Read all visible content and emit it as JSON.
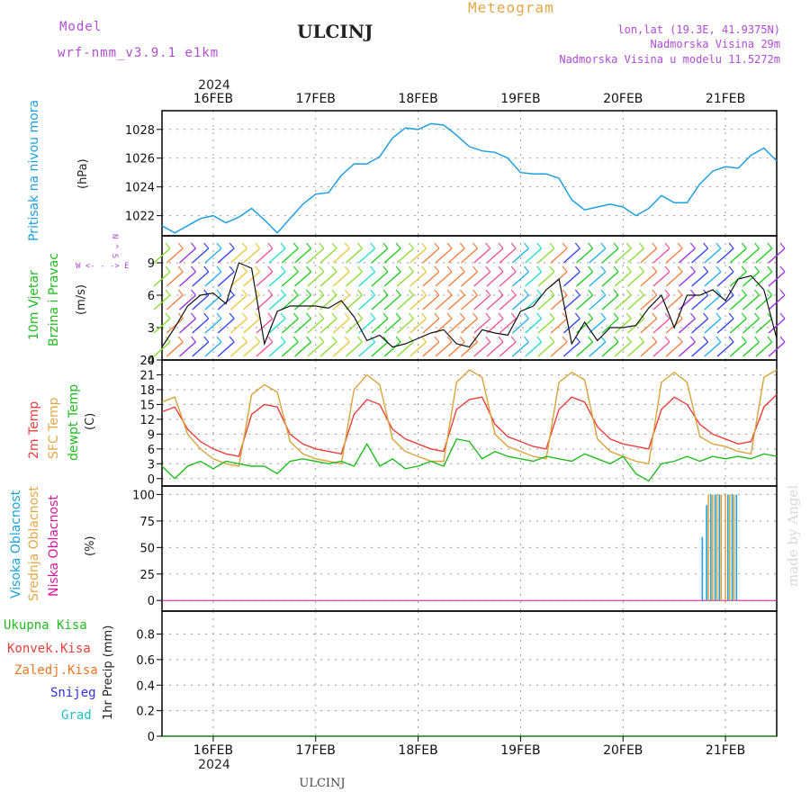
{
  "header": {
    "model_label": "Model",
    "model_name": "wrf-nmm_v3.9.1 e1km",
    "station": "ULCINJ",
    "app_title": "Meteogram",
    "lonlat": "lon,lat (19.3E, 41.9375N)",
    "elevation": "Nadmorska Visina 29m",
    "model_elevation": "Nadmorska Visina u modelu 11.5272m",
    "footer_station": "ULCINJ",
    "credit": "made by Angel"
  },
  "colors": {
    "pressure": "#1e9fe0",
    "temp2m": "#e8403c",
    "sfc_temp": "#d9a33a",
    "dewpt": "#22bb22",
    "high_cloud": "#1aa3e0",
    "mid_cloud": "#e3a53a",
    "low_cloud": "#d4189a",
    "magenta_label": "#b04cd6",
    "orange_label": "#e2a847",
    "green_label": "#22bb22",
    "red_label": "#e8403c",
    "blue_label": "#3030e0",
    "cyan_label": "#20c0c0"
  },
  "time_axis": {
    "year_label": "2024",
    "dates": [
      "16FEB",
      "17FEB",
      "18FEB",
      "19FEB",
      "20FEB",
      "21FEB"
    ],
    "start": "2024-02-15T12:00",
    "end": "2024-02-21T12:00"
  },
  "panels": {
    "pressure": {
      "title": "Pritisak na nivou mora",
      "unit": "(hPa)"
    },
    "wind": {
      "title": "10m Vjetar",
      "subtitle": "Brzina i Pravac",
      "unit": "(m/s)",
      "compass": "W <- - -> E",
      "compass_ns": "N ^ S"
    },
    "temperature": {
      "label_2m": "2m Temp",
      "label_sfc": "SFC Temp",
      "label_dewpt": "dewpt Temp",
      "unit": "(C)"
    },
    "cloud": {
      "label_high": "Visoka Oblacnost",
      "label_mid": "Srednja Oblacnost",
      "label_low": "Niska Oblacnost",
      "unit": "(%)"
    },
    "precip": {
      "label_total": "Ukupna Kisa",
      "label_conv": "Konvek.Kisa",
      "label_frozen": "Zaledj.Kisa",
      "label_snow": "Snijeg",
      "label_grad": "Grad",
      "unit": "1hr Precip (mm)"
    }
  },
  "chart_data": [
    {
      "type": "line",
      "name": "pressure",
      "ylabel": "(hPa)",
      "ylim": [
        1020.6,
        1029.3
      ],
      "yticks": [
        1022,
        1024,
        1026,
        1028
      ],
      "grid": true,
      "x_hours": [
        0,
        3,
        6,
        9,
        12,
        15,
        18,
        21,
        24,
        27,
        30,
        33,
        36,
        39,
        42,
        45,
        48,
        51,
        54,
        57,
        60,
        63,
        66,
        69,
        72,
        75,
        78,
        81,
        84,
        87,
        90,
        93,
        96,
        99,
        102,
        105,
        108,
        111,
        114,
        117,
        120,
        123,
        126,
        129,
        132,
        135,
        138,
        141,
        144
      ],
      "series": [
        {
          "values": [
            1021.3,
            1020.8,
            1021.3,
            1021.8,
            1022.0,
            1021.5,
            1021.9,
            1022.5,
            1021.7,
            1020.8,
            1021.8,
            1022.8,
            1023.5,
            1023.6,
            1024.8,
            1025.6,
            1025.6,
            1026.1,
            1027.4,
            1028.1,
            1028.0,
            1028.4,
            1028.3,
            1027.6,
            1026.8,
            1026.5,
            1026.4,
            1026.0,
            1025.0,
            1024.9,
            1024.9,
            1024.6,
            1023.1,
            1022.4,
            1022.6,
            1022.8,
            1022.6,
            1022.0,
            1022.5,
            1023.4,
            1022.9,
            1022.9,
            1024.2,
            1025.1,
            1025.4,
            1025.3,
            1026.2,
            1026.7,
            1025.8
          ]
        }
      ]
    },
    {
      "type": "line",
      "name": "wind",
      "ylabel": "(m/s)",
      "ylim": [
        0,
        11.5
      ],
      "yticks": [
        0,
        3,
        6,
        9
      ],
      "grid": true,
      "x_hours": [
        0,
        3,
        6,
        9,
        12,
        15,
        18,
        21,
        24,
        27,
        30,
        33,
        36,
        39,
        42,
        45,
        48,
        51,
        54,
        57,
        60,
        63,
        66,
        69,
        72,
        75,
        78,
        81,
        84,
        87,
        90,
        93,
        96,
        99,
        102,
        105,
        108,
        111,
        114,
        117,
        120,
        123,
        126,
        129,
        132,
        135,
        138,
        141,
        144
      ],
      "series": [
        {
          "values": [
            1.2,
            3.0,
            5.0,
            6.0,
            6.2,
            5.2,
            9.0,
            8.5,
            1.5,
            4.5,
            5.0,
            5.0,
            5.0,
            4.8,
            5.5,
            4.0,
            1.8,
            2.3,
            1.2,
            1.5,
            2.0,
            2.5,
            2.8,
            1.5,
            1.2,
            2.8,
            2.5,
            2.3,
            4.5,
            5.0,
            6.5,
            7.5,
            1.5,
            3.5,
            1.8,
            3.0,
            3.0,
            3.2,
            4.8,
            6.0,
            3.0,
            6.0,
            6.0,
            6.5,
            5.5,
            7.5,
            7.8,
            6.5,
            2.0
          ]
        }
      ]
    },
    {
      "type": "line",
      "name": "temperature",
      "ylabel": "(C)",
      "ylim": [
        -1.5,
        24
      ],
      "yticks": [
        0,
        3,
        6,
        9,
        12,
        15,
        18,
        21,
        24
      ],
      "grid": true,
      "x_hours": [
        0,
        3,
        6,
        9,
        12,
        15,
        18,
        21,
        24,
        27,
        30,
        33,
        36,
        39,
        42,
        45,
        48,
        51,
        54,
        57,
        60,
        63,
        66,
        69,
        72,
        75,
        78,
        81,
        84,
        87,
        90,
        93,
        96,
        99,
        102,
        105,
        108,
        111,
        114,
        117,
        120,
        123,
        126,
        129,
        132,
        135,
        138,
        141,
        144
      ],
      "series": [
        {
          "name": "2m Temp",
          "values": [
            13.5,
            14.5,
            10.0,
            7.5,
            6.0,
            5.0,
            4.5,
            13.0,
            15.0,
            14.5,
            9.0,
            7.0,
            6.0,
            5.5,
            5.0,
            13.0,
            16.0,
            15.0,
            10.0,
            8.0,
            7.0,
            6.0,
            5.5,
            14.0,
            16.0,
            16.5,
            11.0,
            8.5,
            7.5,
            6.5,
            6.0,
            14.0,
            16.5,
            15.5,
            10.5,
            8.0,
            7.0,
            6.5,
            6.0,
            14.0,
            16.5,
            15.0,
            11.0,
            9.0,
            8.0,
            7.0,
            7.5,
            14.5,
            17.0
          ]
        },
        {
          "name": "SFC Temp",
          "values": [
            15.5,
            16.5,
            9.0,
            6.0,
            4.0,
            3.0,
            2.5,
            17.0,
            19.0,
            17.5,
            7.5,
            5.0,
            4.0,
            3.5,
            3.0,
            18.0,
            21.0,
            19.0,
            8.0,
            5.5,
            4.5,
            3.5,
            3.5,
            19.5,
            22.0,
            20.5,
            9.0,
            6.5,
            5.5,
            4.5,
            4.0,
            19.5,
            21.5,
            20.0,
            8.0,
            5.5,
            4.5,
            3.5,
            3.0,
            19.5,
            21.5,
            19.5,
            8.5,
            7.0,
            6.5,
            5.5,
            5.0,
            20.5,
            22.0
          ]
        },
        {
          "name": "dewpt Temp",
          "values": [
            2.5,
            0,
            2.5,
            3.5,
            2.0,
            3.5,
            3.0,
            2.5,
            2.5,
            1.0,
            3.5,
            4.0,
            3.5,
            3.0,
            3.5,
            2.5,
            7.0,
            2.5,
            4.0,
            2.0,
            2.5,
            3.5,
            2.5,
            8.0,
            7.5,
            4.0,
            5.5,
            4.5,
            4.0,
            3.5,
            4.5,
            4.0,
            3.5,
            5.0,
            4.0,
            3.0,
            4.5,
            1.0,
            -0.5,
            3.0,
            3.5,
            4.5,
            3.5,
            4.5,
            4.0,
            4.5,
            4.0,
            5.0,
            4.5
          ]
        }
      ]
    },
    {
      "type": "bar",
      "name": "cloud",
      "ylabel": "(%)",
      "ylim": [
        -10,
        108
      ],
      "yticks": [
        0,
        25,
        50,
        75,
        100
      ],
      "grid": true,
      "x_hours": [
        127,
        128,
        129,
        130,
        131,
        132,
        133,
        134,
        135
      ],
      "series": [
        {
          "name": "Visoka Oblacnost",
          "values": [
            60,
            90,
            100,
            100,
            100,
            0,
            100,
            100,
            100
          ]
        },
        {
          "name": "Srednja Oblacnost",
          "values": [
            0,
            100,
            100,
            100,
            100,
            100,
            100,
            100,
            0
          ]
        },
        {
          "name": "Niska Oblacnost",
          "values": [
            0,
            0,
            0,
            0,
            0,
            0,
            0,
            0,
            0
          ]
        }
      ]
    },
    {
      "type": "line",
      "name": "precipitation",
      "ylabel": "1hr Precip (mm)",
      "ylim": [
        0,
        0.98
      ],
      "yticks": [
        0,
        0.2,
        0.4,
        0.6,
        0.8
      ],
      "grid": true,
      "x_hours": [
        0,
        144
      ],
      "series": [
        {
          "name": "Ukupna Kisa",
          "values": [
            0,
            0
          ]
        }
      ]
    }
  ]
}
